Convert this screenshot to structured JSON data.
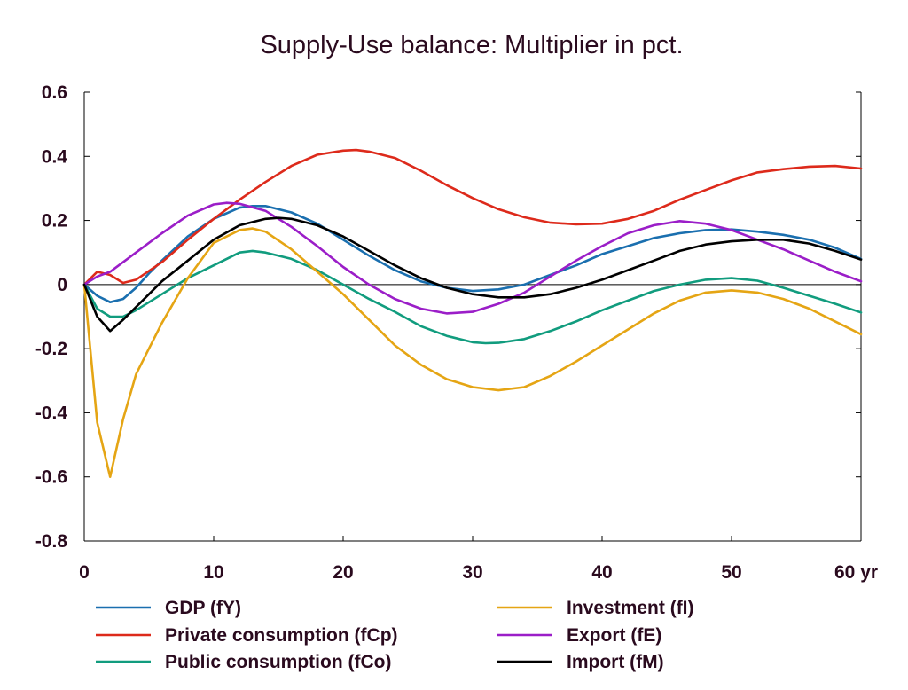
{
  "chart_data": {
    "type": "line",
    "title": "Supply-Use balance: Multiplier in pct.",
    "xlabel": "",
    "ylabel": "",
    "x_unit": "yr",
    "xlim": [
      0,
      60
    ],
    "ylim": [
      -0.8,
      0.6
    ],
    "x_ticks": [
      0,
      10,
      20,
      30,
      40,
      50,
      60
    ],
    "x_tick_labels": [
      "0",
      "10",
      "20",
      "30",
      "40",
      "50",
      "60 yr"
    ],
    "y_ticks": [
      0.6,
      0.4,
      0.2,
      0,
      -0.2,
      -0.4,
      -0.6,
      -0.8
    ],
    "y_tick_labels": [
      "0.6",
      "0.4",
      "0.2",
      "0",
      "-0.2",
      "-0.4",
      "-0.6",
      "-0.8"
    ],
    "grid": false,
    "zero_line": true,
    "legend_position": "bottom",
    "series": [
      {
        "name": "GDP (fY)",
        "color": "#1a6faf",
        "points": [
          [
            0,
            0
          ],
          [
            1,
            -0.035
          ],
          [
            2,
            -0.055
          ],
          [
            3,
            -0.045
          ],
          [
            4,
            -0.01
          ],
          [
            5,
            0.035
          ],
          [
            6,
            0.075
          ],
          [
            8,
            0.15
          ],
          [
            10,
            0.205
          ],
          [
            12,
            0.24
          ],
          [
            13,
            0.245
          ],
          [
            14,
            0.245
          ],
          [
            16,
            0.225
          ],
          [
            18,
            0.19
          ],
          [
            20,
            0.14
          ],
          [
            22,
            0.09
          ],
          [
            24,
            0.045
          ],
          [
            26,
            0.01
          ],
          [
            28,
            -0.01
          ],
          [
            30,
            -0.02
          ],
          [
            32,
            -0.015
          ],
          [
            34,
            0.0
          ],
          [
            36,
            0.03
          ],
          [
            38,
            0.06
          ],
          [
            40,
            0.095
          ],
          [
            42,
            0.12
          ],
          [
            44,
            0.145
          ],
          [
            46,
            0.16
          ],
          [
            48,
            0.17
          ],
          [
            50,
            0.172
          ],
          [
            52,
            0.165
          ],
          [
            54,
            0.155
          ],
          [
            56,
            0.14
          ],
          [
            58,
            0.115
          ],
          [
            60,
            0.08
          ]
        ]
      },
      {
        "name": "Private consumption (fCp)",
        "color": "#dd2a1b",
        "points": [
          [
            0,
            0
          ],
          [
            1,
            0.04
          ],
          [
            2,
            0.03
          ],
          [
            3,
            0.005
          ],
          [
            4,
            0.015
          ],
          [
            6,
            0.07
          ],
          [
            8,
            0.14
          ],
          [
            10,
            0.205
          ],
          [
            12,
            0.265
          ],
          [
            14,
            0.32
          ],
          [
            16,
            0.37
          ],
          [
            18,
            0.405
          ],
          [
            20,
            0.418
          ],
          [
            21,
            0.42
          ],
          [
            22,
            0.415
          ],
          [
            24,
            0.395
          ],
          [
            26,
            0.355
          ],
          [
            28,
            0.31
          ],
          [
            30,
            0.27
          ],
          [
            32,
            0.235
          ],
          [
            34,
            0.21
          ],
          [
            36,
            0.193
          ],
          [
            38,
            0.188
          ],
          [
            40,
            0.19
          ],
          [
            42,
            0.205
          ],
          [
            44,
            0.23
          ],
          [
            46,
            0.265
          ],
          [
            48,
            0.295
          ],
          [
            50,
            0.325
          ],
          [
            52,
            0.35
          ],
          [
            54,
            0.36
          ],
          [
            56,
            0.368
          ],
          [
            58,
            0.37
          ],
          [
            60,
            0.362
          ]
        ]
      },
      {
        "name": "Public consumption (fCo)",
        "color": "#119c7e",
        "points": [
          [
            0,
            0
          ],
          [
            1,
            -0.075
          ],
          [
            2,
            -0.1
          ],
          [
            3,
            -0.1
          ],
          [
            4,
            -0.08
          ],
          [
            6,
            -0.03
          ],
          [
            8,
            0.02
          ],
          [
            10,
            0.06
          ],
          [
            12,
            0.1
          ],
          [
            13,
            0.105
          ],
          [
            14,
            0.1
          ],
          [
            16,
            0.08
          ],
          [
            18,
            0.045
          ],
          [
            20,
            0.0
          ],
          [
            22,
            -0.045
          ],
          [
            24,
            -0.085
          ],
          [
            26,
            -0.13
          ],
          [
            28,
            -0.16
          ],
          [
            30,
            -0.18
          ],
          [
            31,
            -0.183
          ],
          [
            32,
            -0.182
          ],
          [
            34,
            -0.17
          ],
          [
            36,
            -0.145
          ],
          [
            38,
            -0.115
          ],
          [
            40,
            -0.08
          ],
          [
            42,
            -0.05
          ],
          [
            44,
            -0.02
          ],
          [
            46,
            0.0
          ],
          [
            48,
            0.015
          ],
          [
            50,
            0.02
          ],
          [
            52,
            0.012
          ],
          [
            54,
            -0.01
          ],
          [
            56,
            -0.035
          ],
          [
            58,
            -0.06
          ],
          [
            60,
            -0.087
          ]
        ]
      },
      {
        "name": "Investment (fI)",
        "color": "#e5a514",
        "points": [
          [
            0,
            0
          ],
          [
            1,
            -0.43
          ],
          [
            2,
            -0.6
          ],
          [
            3,
            -0.42
          ],
          [
            4,
            -0.28
          ],
          [
            5,
            -0.2
          ],
          [
            6,
            -0.12
          ],
          [
            8,
            0.02
          ],
          [
            10,
            0.13
          ],
          [
            12,
            0.17
          ],
          [
            13,
            0.175
          ],
          [
            14,
            0.165
          ],
          [
            16,
            0.11
          ],
          [
            18,
            0.04
          ],
          [
            20,
            -0.03
          ],
          [
            22,
            -0.11
          ],
          [
            24,
            -0.19
          ],
          [
            26,
            -0.25
          ],
          [
            28,
            -0.295
          ],
          [
            30,
            -0.32
          ],
          [
            32,
            -0.33
          ],
          [
            34,
            -0.32
          ],
          [
            36,
            -0.285
          ],
          [
            38,
            -0.24
          ],
          [
            40,
            -0.19
          ],
          [
            42,
            -0.14
          ],
          [
            44,
            -0.09
          ],
          [
            46,
            -0.05
          ],
          [
            48,
            -0.025
          ],
          [
            50,
            -0.018
          ],
          [
            52,
            -0.025
          ],
          [
            54,
            -0.045
          ],
          [
            56,
            -0.075
          ],
          [
            58,
            -0.115
          ],
          [
            60,
            -0.155
          ]
        ]
      },
      {
        "name": "Export (fE)",
        "color": "#9b1ec8",
        "points": [
          [
            0,
            0
          ],
          [
            1,
            0.025
          ],
          [
            2,
            0.04
          ],
          [
            4,
            0.1
          ],
          [
            6,
            0.16
          ],
          [
            8,
            0.215
          ],
          [
            10,
            0.25
          ],
          [
            11,
            0.255
          ],
          [
            12,
            0.252
          ],
          [
            14,
            0.23
          ],
          [
            16,
            0.18
          ],
          [
            18,
            0.12
          ],
          [
            20,
            0.055
          ],
          [
            22,
            0.0
          ],
          [
            24,
            -0.045
          ],
          [
            26,
            -0.075
          ],
          [
            28,
            -0.09
          ],
          [
            30,
            -0.085
          ],
          [
            32,
            -0.06
          ],
          [
            34,
            -0.025
          ],
          [
            36,
            0.025
          ],
          [
            38,
            0.075
          ],
          [
            40,
            0.12
          ],
          [
            42,
            0.16
          ],
          [
            44,
            0.185
          ],
          [
            46,
            0.198
          ],
          [
            48,
            0.19
          ],
          [
            50,
            0.17
          ],
          [
            52,
            0.14
          ],
          [
            54,
            0.11
          ],
          [
            56,
            0.075
          ],
          [
            58,
            0.04
          ],
          [
            60,
            0.01
          ]
        ]
      },
      {
        "name": "Import (fM)",
        "color": "#000000",
        "points": [
          [
            0,
            0
          ],
          [
            1,
            -0.1
          ],
          [
            2,
            -0.145
          ],
          [
            3,
            -0.11
          ],
          [
            4,
            -0.07
          ],
          [
            5,
            -0.03
          ],
          [
            6,
            0.01
          ],
          [
            8,
            0.075
          ],
          [
            10,
            0.14
          ],
          [
            12,
            0.185
          ],
          [
            14,
            0.205
          ],
          [
            15,
            0.208
          ],
          [
            16,
            0.205
          ],
          [
            18,
            0.185
          ],
          [
            20,
            0.15
          ],
          [
            22,
            0.105
          ],
          [
            24,
            0.06
          ],
          [
            26,
            0.02
          ],
          [
            28,
            -0.01
          ],
          [
            30,
            -0.03
          ],
          [
            32,
            -0.04
          ],
          [
            34,
            -0.04
          ],
          [
            36,
            -0.03
          ],
          [
            38,
            -0.01
          ],
          [
            40,
            0.015
          ],
          [
            42,
            0.045
          ],
          [
            44,
            0.075
          ],
          [
            46,
            0.105
          ],
          [
            48,
            0.125
          ],
          [
            50,
            0.135
          ],
          [
            52,
            0.14
          ],
          [
            54,
            0.14
          ],
          [
            56,
            0.128
          ],
          [
            58,
            0.105
          ],
          [
            60,
            0.078
          ]
        ]
      }
    ]
  }
}
